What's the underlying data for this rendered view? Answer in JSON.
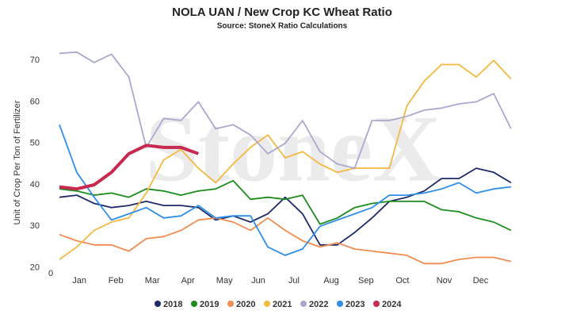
{
  "chart_data": {
    "type": "line",
    "title": "NOLA UAN / New Crop KC Wheat Ratio",
    "subtitle": "Source: StoneX Ratio Calculations",
    "y_label": "Unit of Crop Per Ton of Fertilizer",
    "watermark": "StoneX",
    "x": [
      1,
      3,
      5,
      7,
      9,
      11,
      13,
      15,
      17,
      19,
      21,
      23,
      25,
      27,
      29,
      31,
      33,
      35,
      37,
      39,
      41,
      43,
      45,
      47,
      49,
      51,
      53
    ],
    "xlim": [
      0,
      54
    ],
    "xticks": [
      0,
      {
        "value": 3.3,
        "label": "Jan"
      },
      {
        "value": 7.5,
        "label": "Feb"
      },
      {
        "value": 11.7,
        "label": "Mar"
      },
      {
        "value": 15.8,
        "label": "Apr"
      },
      {
        "value": 20.0,
        "label": "May"
      },
      {
        "value": 23.9,
        "label": "Jun"
      },
      {
        "value": 28.0,
        "label": "Jul"
      },
      {
        "value": 32.3,
        "label": "Aug"
      },
      {
        "value": 36.3,
        "label": "Sep"
      },
      {
        "value": 40.5,
        "label": "Oct"
      },
      {
        "value": 45.3,
        "label": "Nov"
      },
      {
        "value": 49.5,
        "label": "Dec"
      }
    ],
    "ylim": [
      18,
      75
    ],
    "yticks": [
      20,
      30,
      40,
      50,
      60,
      70
    ],
    "grid": false,
    "legend": "bottom",
    "series": [
      {
        "name": "2018",
        "color": "#1f2a6b",
        "values": [
          37,
          37.5,
          35.5,
          34.5,
          35,
          36,
          35,
          35,
          34.5,
          31.5,
          32.5,
          31,
          33,
          37,
          33,
          25.5,
          25.5,
          28.5,
          32,
          36,
          37,
          38.5,
          41.5,
          41.5,
          44,
          43,
          40.5
        ]
      },
      {
        "name": "2019",
        "color": "#1e8c1e",
        "values": [
          39,
          38.5,
          37.5,
          38,
          37,
          39,
          38.5,
          37.5,
          38.5,
          39,
          41,
          36.5,
          37,
          36.5,
          37.5,
          30.5,
          32,
          34.5,
          35.5,
          36,
          36,
          36,
          34,
          33.5,
          32,
          31,
          29
        ]
      },
      {
        "name": "2020",
        "color": "#f28c50",
        "values": [
          28,
          26.5,
          25.5,
          25.5,
          24,
          27,
          27.5,
          29,
          31.5,
          32,
          31,
          29,
          32,
          29,
          26.5,
          25,
          26,
          24.5,
          24,
          23.5,
          23,
          21,
          21,
          22,
          22.5,
          22.5,
          21.5
        ]
      },
      {
        "name": "2021",
        "color": "#f5b841",
        "values": [
          22,
          25,
          29,
          31,
          32,
          38,
          46,
          48.5,
          44,
          40.5,
          45,
          49,
          52,
          46.5,
          48,
          45,
          43,
          44,
          44,
          44,
          59,
          65,
          69,
          69,
          66,
          70,
          65.5
        ]
      },
      {
        "name": "2022",
        "color": "#a9a9d0",
        "values": [
          71.7,
          72,
          69.5,
          71.5,
          66,
          49,
          56,
          55.5,
          60,
          53.5,
          54.5,
          52,
          47.5,
          50,
          55.5,
          48,
          45,
          44,
          55.5,
          55.5,
          56.5,
          58,
          58.5,
          59.5,
          60,
          62,
          53.5
        ]
      },
      {
        "name": "2023",
        "color": "#2f8fe8",
        "values": [
          54.5,
          43,
          37,
          31.5,
          33,
          34.5,
          32,
          32.5,
          35,
          32,
          32.5,
          32.5,
          25,
          23,
          24.5,
          30,
          31.5,
          33,
          34.5,
          37.5,
          37.5,
          38,
          39,
          40.5,
          38,
          39,
          39.5
        ]
      },
      {
        "name": "2024",
        "color": "#c8294e",
        "values": [
          39.5,
          39,
          40,
          43,
          47.5,
          49.5,
          49,
          49,
          47.5,
          null,
          null,
          null,
          null,
          null,
          null,
          null,
          null,
          null,
          null,
          null,
          null,
          null,
          null,
          null,
          null,
          null,
          null
        ]
      }
    ]
  }
}
